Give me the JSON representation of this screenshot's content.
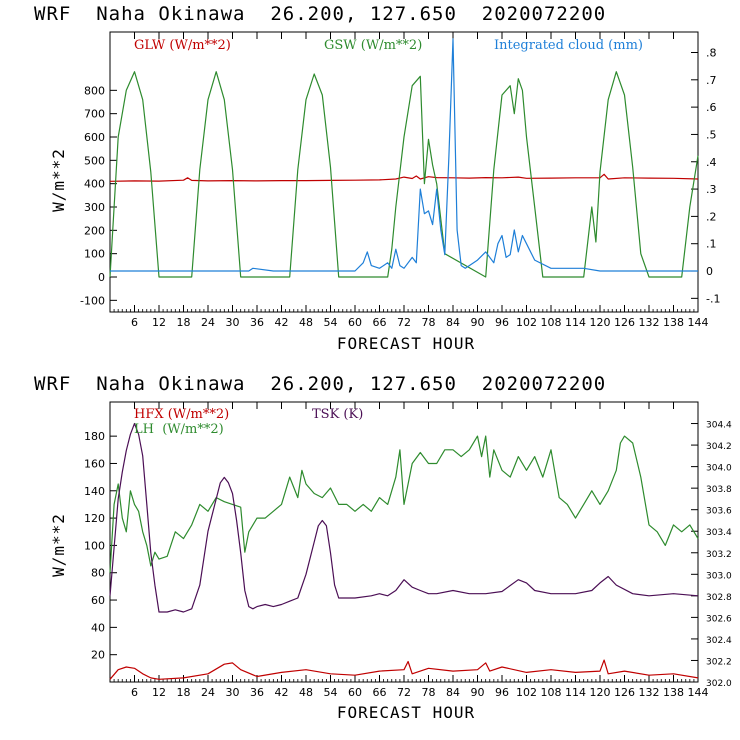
{
  "colors": {
    "glw": "#c00000",
    "gsw": "#2e8b2e",
    "cloud": "#1e7fd8",
    "hfx": "#c00000",
    "lh": "#2e8b2e",
    "tsk": "#4b0f55"
  },
  "chart_data": [
    {
      "type": "line",
      "title": "WRF  Naha Okinawa  26.200, 127.650  2020072200",
      "xlabel": "FORECAST HOUR",
      "ylabel": "W/m**2",
      "xlim": [
        0,
        144
      ],
      "ylim": [
        -150,
        1050
      ],
      "xticks": [
        "6",
        "12",
        "18",
        "24",
        "30",
        "36",
        "42",
        "48",
        "54",
        "60",
        "66",
        "72",
        "78",
        "84",
        "90",
        "96",
        "102",
        "108",
        "114",
        "120",
        "126",
        "132",
        "138",
        "144"
      ],
      "yticks": [
        "-100",
        "0",
        "100",
        "200",
        "300",
        "400",
        "500",
        "600",
        "700",
        "800"
      ],
      "y2ticks": [
        "-.1",
        "0",
        ".1",
        ".2",
        ".3",
        ".4",
        ".5",
        ".6",
        ".7",
        ".8"
      ],
      "y2lim": [
        -0.15,
        0.875
      ],
      "legend": [
        "GLW (W/m**2)",
        "GSW (W/m**2)",
        "Integrated cloud (mm)"
      ],
      "series": [
        {
          "name": "GLW (W/m**2)",
          "axis": "left",
          "x": [
            0,
            6,
            12,
            18,
            19,
            20,
            24,
            30,
            36,
            42,
            48,
            54,
            60,
            66,
            70,
            72,
            74,
            75,
            76,
            78,
            80,
            84,
            88,
            92,
            96,
            100,
            102,
            108,
            114,
            120,
            121,
            122,
            126,
            132,
            138,
            144
          ],
          "y": [
            410,
            412,
            411,
            415,
            425,
            414,
            412,
            413,
            412,
            413,
            413,
            414,
            415,
            416,
            420,
            428,
            422,
            433,
            420,
            430,
            426,
            425,
            424,
            426,
            425,
            428,
            423,
            424,
            425,
            425,
            440,
            420,
            425,
            424,
            423,
            420
          ]
        },
        {
          "name": "GSW (W/m**2)",
          "axis": "left",
          "x": [
            0,
            2,
            4,
            6,
            8,
            10,
            12,
            20,
            22,
            24,
            26,
            28,
            30,
            32,
            34,
            36,
            44,
            46,
            48,
            50,
            52,
            54,
            56,
            58,
            60,
            68,
            69,
            70,
            72,
            74,
            76,
            77,
            78,
            79,
            80,
            82,
            92,
            94,
            96,
            98,
            99,
            100,
            101,
            102,
            104,
            106,
            108,
            116,
            118,
            119,
            120,
            122,
            124,
            126,
            128,
            130,
            132,
            140,
            142,
            144
          ],
          "y": [
            0,
            600,
            800,
            880,
            760,
            450,
            0,
            0,
            460,
            760,
            880,
            760,
            460,
            0,
            0,
            0,
            0,
            460,
            760,
            870,
            780,
            470,
            0,
            0,
            0,
            0,
            120,
            300,
            600,
            820,
            860,
            400,
            590,
            480,
            400,
            100,
            0,
            460,
            780,
            820,
            700,
            850,
            800,
            600,
            300,
            0,
            0,
            0,
            300,
            150,
            450,
            760,
            880,
            780,
            470,
            100,
            0,
            0,
            300,
            520
          ]
        },
        {
          "name": "Integrated cloud (mm)",
          "axis": "right",
          "x": [
            0,
            10,
            30,
            34,
            35,
            40,
            60,
            62,
            63,
            64,
            66,
            68,
            69,
            70,
            71,
            72,
            74,
            75,
            76,
            77,
            78,
            79,
            80,
            81,
            82,
            83,
            84,
            85,
            86,
            87,
            88,
            90,
            92,
            94,
            95,
            96,
            97,
            98,
            99,
            100,
            101,
            102,
            104,
            108,
            112,
            116,
            120,
            124,
            130,
            144
          ],
          "y": [
            0,
            0,
            0,
            0,
            0.01,
            0,
            0,
            0.03,
            0.07,
            0.02,
            0.01,
            0.03,
            0.01,
            0.08,
            0.02,
            0.01,
            0.05,
            0.03,
            0.3,
            0.21,
            0.22,
            0.17,
            0.3,
            0.15,
            0.06,
            0.42,
            0.85,
            0.15,
            0.02,
            0.01,
            0.02,
            0.04,
            0.07,
            0.03,
            0.1,
            0.13,
            0.05,
            0.06,
            0.15,
            0.07,
            0.13,
            0.1,
            0.04,
            0.01,
            0.01,
            0.01,
            0,
            0,
            0,
            0
          ]
        }
      ]
    },
    {
      "type": "line",
      "title": "WRF  Naha Okinawa  26.200, 127.650  2020072200",
      "xlabel": "FORECAST HOUR",
      "ylabel": "W/m**2",
      "xlim": [
        0,
        144
      ],
      "ylim": [
        0,
        205
      ],
      "xticks": [
        "6",
        "12",
        "18",
        "24",
        "30",
        "36",
        "42",
        "48",
        "54",
        "60",
        "66",
        "72",
        "78",
        "84",
        "90",
        "96",
        "102",
        "108",
        "114",
        "120",
        "126",
        "132",
        "138",
        "144"
      ],
      "yticks": [
        "20",
        "40",
        "60",
        "80",
        "100",
        "120",
        "140",
        "160",
        "180"
      ],
      "y2ticks": [
        "302.0",
        "302.2",
        "302.4",
        "302.6",
        "302.8",
        "303.0",
        "303.2",
        "303.4",
        "303.6",
        "303.8",
        "304.0",
        "304.2",
        "304.4"
      ],
      "y2lim": [
        302.0,
        304.6
      ],
      "legend": [
        "HFX (W/m**2)",
        "LH  (W/m**2)",
        "TSK (K)"
      ],
      "series": [
        {
          "name": "HFX (W/m**2)",
          "axis": "left",
          "x": [
            0,
            2,
            4,
            6,
            8,
            10,
            12,
            18,
            24,
            28,
            30,
            32,
            36,
            42,
            48,
            54,
            60,
            66,
            72,
            73,
            74,
            78,
            84,
            90,
            92,
            93,
            96,
            102,
            108,
            114,
            120,
            121,
            122,
            126,
            132,
            138,
            144
          ],
          "y": [
            2,
            9,
            11,
            10,
            6,
            3,
            2,
            3,
            6,
            13,
            14,
            9,
            4,
            7,
            9,
            6,
            5,
            8,
            9,
            15,
            6,
            10,
            8,
            9,
            14,
            8,
            11,
            7,
            9,
            7,
            8,
            16,
            6,
            8,
            5,
            6,
            3
          ]
        },
        {
          "name": "LH  (W/m**2)",
          "axis": "left",
          "x": [
            0,
            1,
            2,
            3,
            4,
            5,
            6,
            7,
            8,
            9,
            10,
            11,
            12,
            14,
            16,
            18,
            20,
            22,
            24,
            26,
            28,
            30,
            32,
            33,
            34,
            36,
            38,
            40,
            42,
            44,
            46,
            47,
            48,
            50,
            52,
            54,
            56,
            58,
            60,
            62,
            64,
            66,
            68,
            70,
            71,
            72,
            73,
            74,
            76,
            78,
            80,
            82,
            84,
            86,
            88,
            90,
            91,
            92,
            93,
            94,
            96,
            98,
            100,
            102,
            104,
            106,
            108,
            110,
            112,
            114,
            116,
            118,
            120,
            122,
            124,
            125,
            126,
            128,
            130,
            132,
            134,
            136,
            138,
            140,
            142,
            144
          ],
          "y": [
            80,
            130,
            145,
            120,
            110,
            140,
            130,
            125,
            110,
            100,
            85,
            95,
            90,
            92,
            110,
            105,
            115,
            130,
            125,
            135,
            132,
            130,
            128,
            95,
            110,
            120,
            120,
            125,
            130,
            150,
            135,
            155,
            145,
            138,
            135,
            142,
            130,
            130,
            125,
            130,
            125,
            135,
            130,
            150,
            170,
            130,
            145,
            160,
            168,
            160,
            160,
            170,
            170,
            165,
            170,
            180,
            165,
            180,
            150,
            170,
            155,
            150,
            165,
            155,
            165,
            150,
            170,
            135,
            130,
            120,
            130,
            140,
            130,
            140,
            155,
            175,
            180,
            175,
            150,
            115,
            110,
            100,
            115,
            110,
            115,
            105
          ]
        },
        {
          "name": "TSK (K)",
          "axis": "right",
          "x": [
            0,
            1,
            2,
            3,
            4,
            5,
            6,
            7,
            8,
            9,
            10,
            11,
            12,
            14,
            16,
            18,
            20,
            22,
            24,
            26,
            27,
            28,
            29,
            30,
            31,
            32,
            33,
            34,
            35,
            36,
            38,
            40,
            42,
            44,
            46,
            48,
            50,
            51,
            52,
            53,
            54,
            55,
            56,
            58,
            60,
            64,
            66,
            68,
            70,
            72,
            74,
            76,
            78,
            80,
            84,
            88,
            92,
            96,
            100,
            102,
            104,
            108,
            114,
            118,
            120,
            122,
            124,
            128,
            132,
            138,
            144
          ],
          "y": [
            302.8,
            303.25,
            303.7,
            303.95,
            304.15,
            304.3,
            304.4,
            304.3,
            304.1,
            303.65,
            303.2,
            302.9,
            302.65,
            302.65,
            302.67,
            302.65,
            302.68,
            302.9,
            303.4,
            303.7,
            303.85,
            303.9,
            303.85,
            303.75,
            303.5,
            303.2,
            302.85,
            302.7,
            302.68,
            302.7,
            302.72,
            302.7,
            302.72,
            302.75,
            302.78,
            303.0,
            303.3,
            303.45,
            303.5,
            303.45,
            303.2,
            302.9,
            302.78,
            302.78,
            302.78,
            302.8,
            302.82,
            302.8,
            302.85,
            302.95,
            302.88,
            302.85,
            302.82,
            302.82,
            302.85,
            302.82,
            302.82,
            302.84,
            302.95,
            302.92,
            302.85,
            302.82,
            302.82,
            302.85,
            302.92,
            302.98,
            302.9,
            302.82,
            302.8,
            302.82,
            302.8
          ]
        }
      ]
    }
  ]
}
